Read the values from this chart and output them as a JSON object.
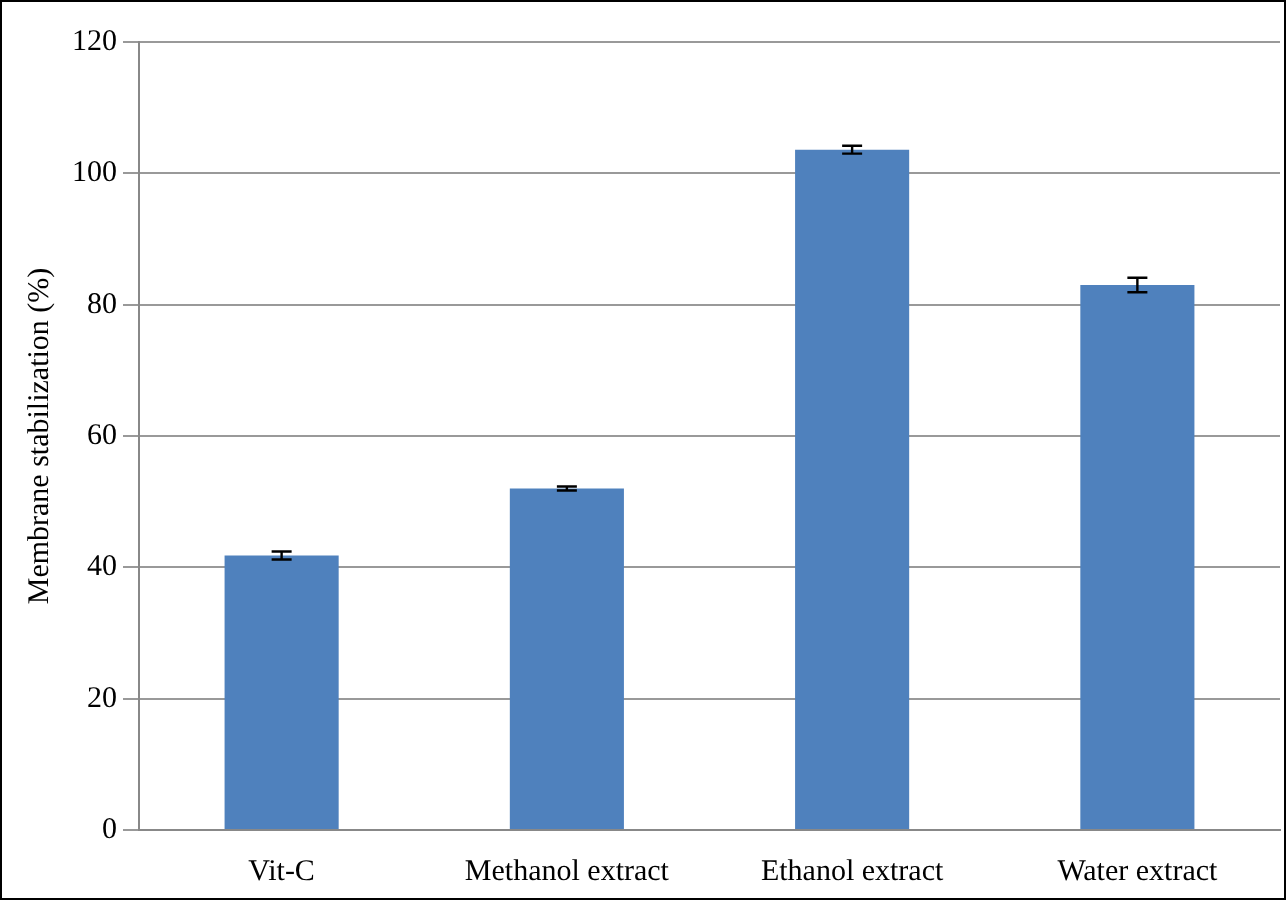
{
  "chart_data": {
    "type": "bar",
    "ylabel": "Membrane stabilization (%)",
    "categories": [
      "Vit-C",
      "Methanol extract",
      "Ethanol extract",
      "Water extract"
    ],
    "values": [
      41.8,
      52,
      103.6,
      83
    ],
    "errors": [
      0.6,
      0.3,
      0.6,
      1.1
    ],
    "color": "#4f81bd",
    "ylim": [
      0,
      120
    ],
    "yticks": [
      0,
      20,
      40,
      60,
      80,
      100,
      120
    ],
    "grid": "y",
    "legend": false
  }
}
